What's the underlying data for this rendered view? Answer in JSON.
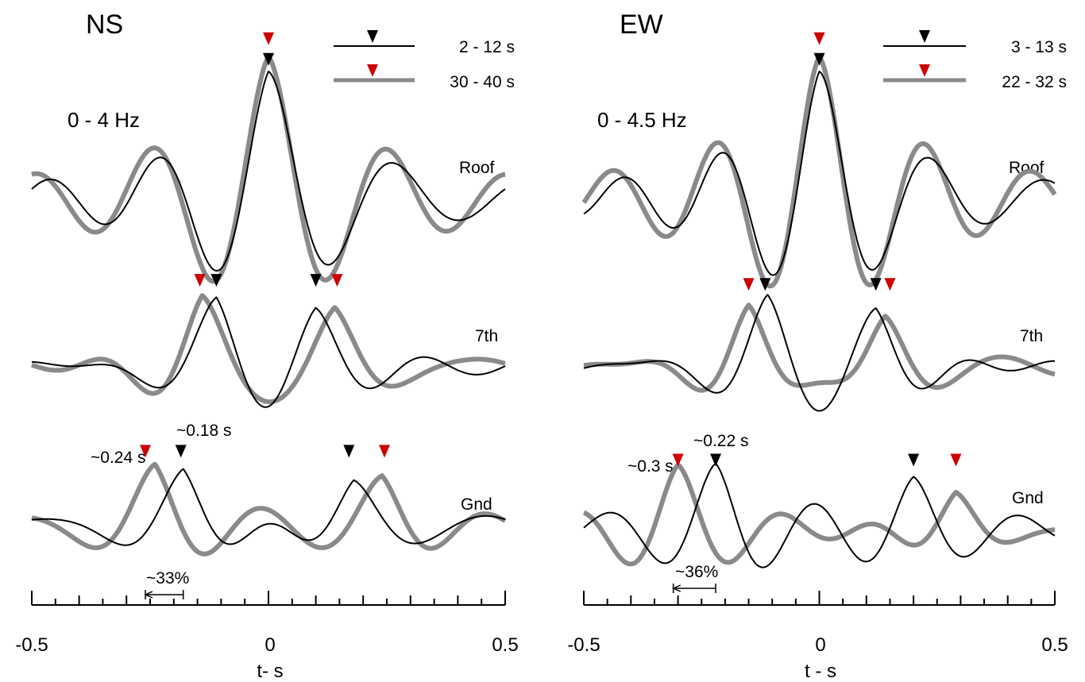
{
  "chart_data": [
    {
      "type": "line",
      "title": "NS",
      "band_label": "0 -  4 Hz",
      "xlabel": "t- s",
      "xlim": [
        -0.5,
        0.5
      ],
      "xticks": [
        -0.5,
        0,
        0.5
      ],
      "minor_tick_step": 0.05,
      "legend": [
        {
          "label": "2 - 12 s",
          "style": "thin",
          "color": "#000000",
          "marker_color": "#000000"
        },
        {
          "label": "30 - 40 s",
          "style": "thick",
          "color": "#8a8a8a",
          "marker_color": "#cc0000"
        }
      ],
      "traces": [
        {
          "name": "Roof",
          "series": [
            {
              "legend_index": 0,
              "peak": 0.0,
              "freq": 4.0
            },
            {
              "legend_index": 1,
              "peak": 0.0,
              "freq": 4.0
            }
          ],
          "markers": [
            {
              "t": 0.0,
              "color": "#cc0000"
            },
            {
              "t": 0.0,
              "color": "#000000"
            }
          ]
        },
        {
          "name": "7th",
          "series": [
            {
              "legend_index": 0,
              "peak": -0.11,
              "secondary_peak": 0.1,
              "freq": 3.8
            },
            {
              "legend_index": 1,
              "peak": -0.14,
              "secondary_peak": 0.14,
              "freq": 4.0
            }
          ],
          "markers": [
            {
              "t": -0.145,
              "color": "#cc0000"
            },
            {
              "t": -0.11,
              "color": "#000000"
            },
            {
              "t": 0.1,
              "color": "#000000"
            },
            {
              "t": 0.145,
              "color": "#cc0000"
            }
          ]
        },
        {
          "name": "Gnd",
          "series": [
            {
              "legend_index": 0,
              "peak": -0.18,
              "secondary_peak": 0.18,
              "freq": 4.0
            },
            {
              "legend_index": 1,
              "peak": -0.24,
              "secondary_peak": 0.24,
              "freq": 4.0
            }
          ],
          "markers": [
            {
              "t": -0.26,
              "color": "#cc0000"
            },
            {
              "t": -0.185,
              "color": "#000000"
            },
            {
              "t": 0.17,
              "color": "#000000"
            },
            {
              "t": 0.245,
              "color": "#cc0000"
            }
          ]
        }
      ],
      "annotations": [
        {
          "text": "~0.24 s"
        },
        {
          "text": "~0.18 s"
        },
        {
          "text": "~33%",
          "from": -0.26,
          "to": -0.18
        }
      ]
    },
    {
      "type": "line",
      "title": "EW",
      "band_label": "0 -  4.5 Hz",
      "xlabel": "t - s",
      "xlim": [
        -0.5,
        0.5
      ],
      "xticks": [
        -0.5,
        0,
        0.5
      ],
      "minor_tick_step": 0.05,
      "legend": [
        {
          "label": "3 - 13 s",
          "style": "thin",
          "color": "#000000",
          "marker_color": "#000000"
        },
        {
          "label": "22 - 32 s",
          "style": "thick",
          "color": "#8a8a8a",
          "marker_color": "#cc0000"
        }
      ],
      "traces": [
        {
          "name": "Roof",
          "series": [
            {
              "legend_index": 0,
              "peak": 0.0,
              "freq": 4.5
            },
            {
              "legend_index": 1,
              "peak": 0.0,
              "freq": 4.5
            }
          ],
          "markers": [
            {
              "t": 0.0,
              "color": "#cc0000"
            },
            {
              "t": 0.0,
              "color": "#000000"
            }
          ]
        },
        {
          "name": "7th",
          "series": [
            {
              "legend_index": 0,
              "peak": -0.11,
              "secondary_peak": 0.12,
              "freq": 4.3
            },
            {
              "legend_index": 1,
              "peak": -0.15,
              "secondary_peak": 0.14,
              "freq": 4.5
            }
          ],
          "markers": [
            {
              "t": -0.15,
              "color": "#cc0000"
            },
            {
              "t": -0.115,
              "color": "#000000"
            },
            {
              "t": 0.12,
              "color": "#000000"
            },
            {
              "t": 0.15,
              "color": "#cc0000"
            }
          ]
        },
        {
          "name": "Gnd",
          "series": [
            {
              "legend_index": 0,
              "peak": -0.22,
              "secondary_peak": 0.2,
              "freq": 4.5
            },
            {
              "legend_index": 1,
              "peak": -0.3,
              "secondary_peak": 0.29,
              "freq": 4.5
            }
          ],
          "markers": [
            {
              "t": -0.3,
              "color": "#cc0000"
            },
            {
              "t": -0.22,
              "color": "#000000"
            },
            {
              "t": 0.2,
              "color": "#000000"
            },
            {
              "t": 0.29,
              "color": "#cc0000"
            }
          ]
        }
      ],
      "annotations": [
        {
          "text": "~0.3 s"
        },
        {
          "text": "~0.22 s"
        },
        {
          "text": "~36%",
          "from": -0.31,
          "to": -0.22
        }
      ]
    }
  ]
}
